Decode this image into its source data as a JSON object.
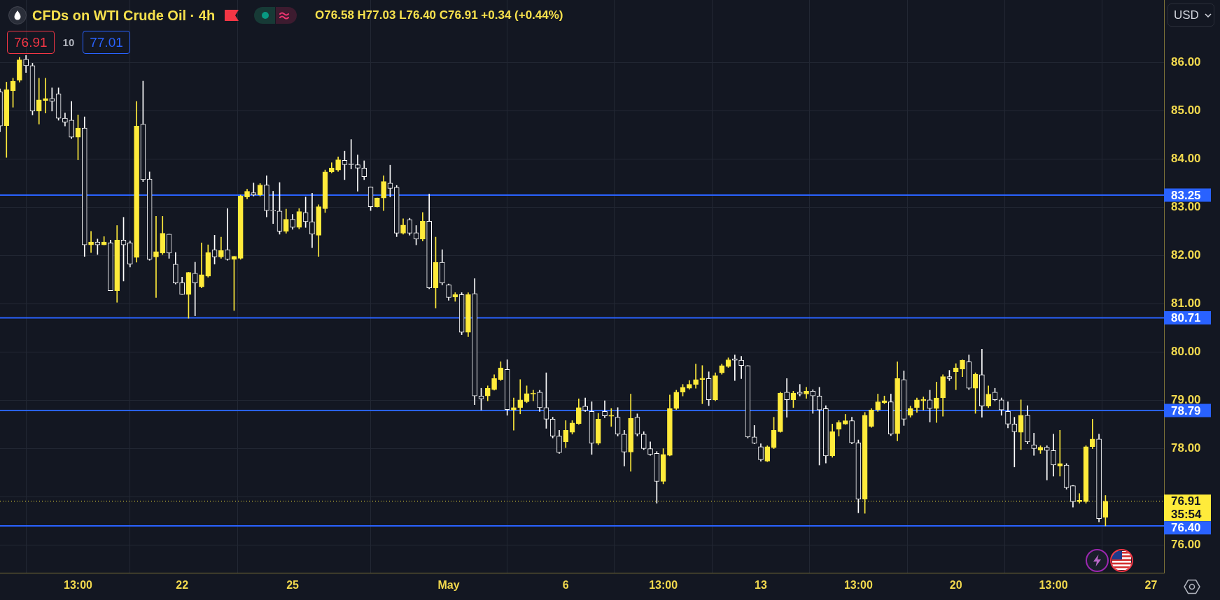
{
  "chart_data": {
    "type": "candlestick",
    "title": "CFDs on WTI Crude Oil · 4h",
    "annotations": [
      "O76.58 H77.03 L76.40 C76.91 +0.34 (+0.44%)",
      "76.91",
      "10",
      "77.01",
      "USD",
      "35:54"
    ],
    "categories": [
      null,
      null,
      null,
      null,
      null,
      null,
      null,
      null,
      null,
      null,
      null,
      null,
      "13:00",
      null,
      null,
      null,
      null,
      null,
      null,
      null,
      null,
      null,
      null,
      null,
      null,
      null,
      null,
      null,
      "22",
      null,
      null,
      null,
      null,
      null,
      null,
      null,
      null,
      null,
      null,
      null,
      null,
      null,
      null,
      null,
      null,
      "25",
      null,
      null,
      null,
      null,
      null,
      null,
      null,
      null,
      null,
      null,
      null,
      null,
      null,
      null,
      null,
      null,
      null,
      null,
      null,
      null,
      null,
      null,
      null,
      "May",
      null,
      null,
      null,
      null,
      null,
      null,
      null,
      null,
      null,
      null,
      null,
      null,
      null,
      null,
      null,
      null,
      null,
      "6",
      null,
      null,
      null,
      null,
      null,
      null,
      null,
      null,
      null,
      null,
      null,
      null,
      null,
      null,
      "13:00",
      null,
      null,
      null,
      null,
      null,
      null,
      null,
      null,
      null,
      null,
      null,
      null,
      null,
      null,
      "13",
      null,
      null,
      null,
      null,
      null,
      null,
      null,
      null,
      null,
      null,
      null,
      null,
      null,
      null,
      "13:00",
      null,
      null,
      null,
      null,
      null,
      null,
      null,
      null,
      null,
      null,
      null,
      null,
      null,
      null,
      "20",
      null,
      null,
      null,
      null,
      null,
      null,
      null,
      null,
      null,
      null,
      null,
      null,
      null,
      null,
      "13:00",
      null,
      null,
      null,
      null,
      null,
      null,
      null,
      null,
      null,
      null,
      null,
      null,
      null,
      null,
      "27",
      null,
      null
    ],
    "ohlc": [
      [
        85.39,
        85.45,
        84.56,
        84.68
      ],
      [
        84.69,
        85.59,
        84.03,
        85.43
      ],
      [
        85.41,
        85.67,
        85.07,
        85.61
      ],
      [
        85.63,
        86.1,
        85.59,
        86.05
      ],
      [
        86.06,
        86.14,
        85.79,
        85.93
      ],
      [
        85.93,
        85.98,
        84.91,
        84.99
      ],
      [
        84.99,
        85.67,
        84.72,
        85.22
      ],
      [
        85.21,
        85.67,
        84.95,
        85.25
      ],
      [
        85.25,
        85.47,
        84.99,
        85.19
      ],
      [
        85.35,
        85.47,
        84.8,
        84.84
      ],
      [
        84.84,
        84.95,
        84.68,
        84.76
      ],
      [
        84.8,
        85.19,
        84.42,
        84.45
      ],
      [
        84.45,
        84.91,
        83.98,
        84.64
      ],
      [
        84.64,
        84.87,
        81.98,
        82.22
      ],
      [
        82.22,
        82.5,
        82.06,
        82.28
      ],
      [
        82.28,
        82.34,
        82.02,
        82.22
      ],
      [
        82.22,
        82.39,
        82.22,
        82.28
      ],
      [
        82.26,
        82.32,
        81.27,
        81.27
      ],
      [
        81.27,
        82.62,
        81.03,
        82.32
      ],
      [
        82.32,
        82.79,
        81.47,
        82.22
      ],
      [
        82.26,
        82.3,
        81.76,
        81.82
      ],
      [
        81.96,
        85.19,
        81.86,
        84.68
      ],
      [
        84.72,
        85.61,
        83.53,
        83.57
      ],
      [
        83.58,
        83.73,
        81.9,
        81.92
      ],
      [
        81.97,
        82.81,
        81.13,
        82.08
      ],
      [
        82.05,
        82.81,
        82.02,
        82.46
      ],
      [
        82.44,
        82.44,
        81.94,
        82.05
      ],
      [
        81.82,
        82.06,
        81.41,
        81.43
      ],
      [
        81.44,
        81.55,
        81.19,
        81.19
      ],
      [
        81.19,
        81.65,
        80.7,
        81.65
      ],
      [
        81.63,
        81.86,
        80.75,
        81.43
      ],
      [
        81.35,
        82.26,
        81.33,
        81.6
      ],
      [
        81.57,
        82.22,
        81.55,
        82.06
      ],
      [
        82.12,
        82.42,
        81.82,
        81.97
      ],
      [
        81.97,
        82.38,
        81.94,
        82.1
      ],
      [
        82.12,
        82.97,
        81.9,
        81.92
      ],
      [
        81.92,
        81.98,
        80.86,
        81.98
      ],
      [
        81.94,
        83.25,
        81.92,
        83.23
      ],
      [
        83.21,
        83.37,
        83.17,
        83.33
      ],
      [
        83.3,
        83.5,
        83.23,
        83.25
      ],
      [
        83.25,
        83.49,
        83.23,
        83.46
      ],
      [
        83.46,
        83.65,
        82.8,
        82.93
      ],
      [
        82.93,
        83.33,
        82.66,
        82.92
      ],
      [
        82.92,
        83.51,
        82.44,
        82.5
      ],
      [
        82.5,
        82.96,
        82.46,
        82.75
      ],
      [
        82.75,
        82.85,
        82.54,
        82.58
      ],
      [
        82.58,
        82.97,
        82.55,
        82.91
      ],
      [
        82.89,
        83.21,
        82.58,
        82.7
      ],
      [
        82.7,
        83.29,
        82.16,
        82.44
      ],
      [
        82.42,
        83.05,
        81.98,
        83.01
      ],
      [
        82.97,
        83.77,
        82.89,
        83.73
      ],
      [
        83.73,
        83.92,
        83.71,
        83.81
      ],
      [
        83.77,
        84.04,
        83.74,
        83.98
      ],
      [
        83.97,
        84.16,
        83.57,
        83.88
      ],
      [
        83.9,
        84.4,
        83.79,
        83.88
      ],
      [
        83.88,
        84.08,
        83.33,
        83.81
      ],
      [
        83.81,
        83.96,
        83.57,
        83.63
      ],
      [
        83.42,
        83.42,
        82.93,
        83.01
      ],
      [
        83.01,
        83.19,
        83.0,
        83.19
      ],
      [
        83.19,
        83.65,
        82.93,
        83.53
      ],
      [
        83.5,
        83.87,
        83.21,
        83.39
      ],
      [
        83.41,
        83.45,
        82.39,
        82.46
      ],
      [
        82.46,
        82.76,
        82.44,
        82.63
      ],
      [
        82.74,
        82.77,
        82.42,
        82.46
      ],
      [
        82.47,
        82.62,
        82.22,
        82.34
      ],
      [
        82.34,
        82.89,
        82.3,
        82.71
      ],
      [
        82.71,
        83.27,
        81.31,
        81.33
      ],
      [
        81.33,
        82.38,
        80.91,
        81.86
      ],
      [
        81.86,
        82.12,
        81.39,
        81.43
      ],
      [
        81.39,
        81.41,
        81.07,
        81.13
      ],
      [
        81.14,
        81.23,
        81.05,
        81.19
      ],
      [
        81.19,
        81.23,
        80.36,
        80.41
      ],
      [
        80.41,
        81.23,
        80.32,
        81.19
      ],
      [
        81.21,
        81.52,
        78.91,
        79.09
      ],
      [
        79.09,
        79.25,
        78.8,
        79.03
      ],
      [
        79.09,
        79.3,
        78.99,
        79.25
      ],
      [
        79.22,
        79.53,
        79.21,
        79.45
      ],
      [
        79.43,
        79.8,
        79.41,
        79.67
      ],
      [
        79.64,
        79.84,
        78.69,
        78.81
      ],
      [
        78.8,
        79.05,
        78.38,
        78.85
      ],
      [
        78.85,
        79.43,
        78.72,
        79.01
      ],
      [
        78.97,
        79.3,
        78.95,
        79.14
      ],
      [
        79.13,
        79.21,
        78.99,
        79.15
      ],
      [
        79.17,
        79.21,
        78.77,
        78.85
      ],
      [
        78.85,
        79.57,
        78.42,
        78.61
      ],
      [
        78.61,
        78.65,
        78.22,
        78.26
      ],
      [
        78.26,
        78.38,
        77.9,
        77.92
      ],
      [
        78.14,
        78.58,
        78.02,
        78.38
      ],
      [
        78.34,
        78.58,
        78.3,
        78.53
      ],
      [
        78.52,
        79.03,
        78.5,
        78.85
      ],
      [
        78.88,
        79.05,
        78.77,
        78.79
      ],
      [
        78.77,
        78.97,
        77.88,
        78.11
      ],
      [
        78.11,
        78.73,
        78.08,
        78.61
      ],
      [
        78.77,
        78.99,
        78.64,
        78.68
      ],
      [
        78.67,
        78.83,
        78.46,
        78.69
      ],
      [
        78.65,
        78.85,
        78.26,
        78.3
      ],
      [
        78.3,
        78.38,
        77.64,
        77.93
      ],
      [
        77.93,
        79.13,
        77.53,
        78.63
      ],
      [
        78.65,
        78.72,
        78.26,
        78.3
      ],
      [
        78.3,
        78.35,
        77.98,
        78.0
      ],
      [
        78.0,
        78.14,
        77.86,
        77.88
      ],
      [
        77.9,
        77.94,
        76.87,
        77.32
      ],
      [
        77.32,
        78.0,
        77.27,
        77.88
      ],
      [
        77.86,
        79.11,
        77.85,
        78.83
      ],
      [
        78.83,
        79.21,
        78.81,
        79.17
      ],
      [
        79.17,
        79.33,
        79.09,
        79.27
      ],
      [
        79.25,
        79.41,
        79.23,
        79.33
      ],
      [
        79.33,
        79.75,
        79.25,
        79.43
      ],
      [
        79.43,
        79.72,
        78.93,
        79.46
      ],
      [
        79.45,
        79.59,
        78.89,
        79.01
      ],
      [
        79.01,
        79.57,
        78.99,
        79.51
      ],
      [
        79.57,
        79.75,
        79.54,
        79.72
      ],
      [
        79.7,
        79.88,
        79.68,
        79.84
      ],
      [
        79.86,
        79.94,
        79.41,
        79.83
      ],
      [
        79.83,
        79.91,
        79.45,
        79.72
      ],
      [
        79.72,
        79.72,
        78.22,
        78.24
      ],
      [
        78.24,
        78.48,
        78.1,
        78.11
      ],
      [
        78.04,
        78.1,
        77.74,
        77.77
      ],
      [
        77.74,
        78.06,
        77.73,
        78.04
      ],
      [
        78.02,
        78.65,
        78.0,
        78.38
      ],
      [
        78.35,
        79.17,
        78.34,
        79.15
      ],
      [
        79.17,
        79.45,
        78.65,
        79.01
      ],
      [
        79.01,
        79.19,
        78.85,
        79.15
      ],
      [
        79.17,
        79.33,
        79.09,
        79.13
      ],
      [
        79.13,
        79.27,
        79.04,
        79.19
      ],
      [
        79.19,
        79.22,
        78.73,
        79.09
      ],
      [
        79.09,
        79.27,
        77.66,
        78.8
      ],
      [
        78.83,
        78.89,
        77.7,
        77.85
      ],
      [
        77.85,
        78.51,
        77.82,
        78.35
      ],
      [
        78.4,
        78.58,
        78.26,
        78.54
      ],
      [
        78.51,
        78.71,
        78.5,
        78.58
      ],
      [
        78.58,
        78.65,
        78.1,
        78.12
      ],
      [
        78.12,
        78.18,
        76.67,
        76.95
      ],
      [
        76.95,
        78.75,
        76.66,
        78.69
      ],
      [
        78.46,
        78.83,
        78.44,
        78.8
      ],
      [
        78.8,
        79.13,
        78.77,
        78.97
      ],
      [
        78.95,
        79.09,
        78.93,
        78.99
      ],
      [
        78.97,
        79.13,
        78.27,
        78.3
      ],
      [
        78.31,
        79.8,
        78.16,
        79.45
      ],
      [
        79.43,
        79.61,
        78.48,
        78.61
      ],
      [
        78.69,
        78.88,
        78.65,
        78.83
      ],
      [
        78.85,
        79.05,
        78.75,
        79.01
      ],
      [
        78.99,
        79.07,
        78.8,
        79.02
      ],
      [
        79.01,
        79.21,
        78.55,
        78.83
      ],
      [
        78.83,
        79.38,
        78.54,
        79.05
      ],
      [
        79.05,
        79.53,
        78.67,
        79.49
      ],
      [
        79.49,
        79.62,
        79.41,
        79.45
      ],
      [
        79.59,
        79.76,
        79.22,
        79.67
      ],
      [
        79.65,
        79.84,
        79.49,
        79.83
      ],
      [
        79.8,
        79.94,
        79.22,
        79.25
      ],
      [
        79.25,
        79.57,
        78.73,
        79.54
      ],
      [
        79.53,
        80.06,
        78.65,
        78.88
      ],
      [
        78.88,
        79.3,
        78.85,
        79.13
      ],
      [
        79.17,
        79.25,
        78.99,
        79.01
      ],
      [
        79.01,
        79.05,
        78.69,
        78.8
      ],
      [
        78.77,
        78.97,
        78.43,
        78.51
      ],
      [
        78.51,
        78.65,
        77.62,
        78.35
      ],
      [
        78.34,
        79.01,
        77.98,
        78.69
      ],
      [
        78.69,
        78.89,
        78.1,
        78.14
      ],
      [
        78.08,
        78.32,
        77.86,
        78.0
      ],
      [
        77.97,
        78.06,
        77.9,
        78.03
      ],
      [
        78.03,
        78.06,
        77.35,
        77.96
      ],
      [
        77.96,
        78.3,
        77.43,
        77.66
      ],
      [
        77.64,
        78.38,
        77.43,
        77.69
      ],
      [
        77.66,
        77.69,
        77.16,
        77.19
      ],
      [
        77.23,
        77.24,
        76.79,
        76.9
      ],
      [
        76.9,
        77.07,
        76.87,
        76.93
      ],
      [
        76.9,
        78.06,
        76.87,
        78.04
      ],
      [
        78.04,
        78.61,
        78.0,
        78.2
      ],
      [
        78.2,
        78.3,
        76.48,
        76.55
      ],
      [
        76.58,
        77.03,
        76.4,
        76.91
      ],
      null,
      null,
      null,
      null,
      null,
      null,
      null,
      null,
      null
    ],
    "colors": [
      "#ffffff",
      "#ffeb3b",
      "#ffeb3b",
      "#ffeb3b",
      "#ffffff",
      "#ffffff",
      "#ffeb3b",
      "#ffeb3b",
      "#ffffff",
      "#ffffff",
      "#ffffff",
      "#ffffff",
      "#ffeb3b",
      "#ffffff",
      "#ffeb3b",
      "#ffffff",
      "#ffeb3b",
      "#ffffff",
      "#ffeb3b",
      "#ffffff",
      "#ffffff",
      "#ffeb3b",
      "#ffffff",
      "#ffffff",
      "#ffeb3b",
      "#ffeb3b",
      "#ffffff",
      "#ffffff",
      "#ffffff",
      "#ffeb3b",
      "#ffffff",
      "#ffeb3b",
      "#ffeb3b",
      "#ffffff",
      "#ffeb3b",
      "#ffffff",
      "#ffeb3b",
      "#ffeb3b",
      "#ffeb3b",
      "#ffffff",
      "#ffeb3b",
      "#ffffff",
      "#ffffff",
      "#ffffff",
      "#ffeb3b",
      "#ffffff",
      "#ffeb3b",
      "#ffffff",
      "#ffffff",
      "#ffeb3b",
      "#ffeb3b",
      "#ffeb3b",
      "#ffeb3b",
      "#ffffff",
      "#ffffff",
      "#ffffff",
      "#ffffff",
      "#ffffff",
      "#ffeb3b",
      "#ffeb3b",
      "#ffffff",
      "#ffffff",
      "#ffeb3b",
      "#ffffff",
      "#ffffff",
      "#ffeb3b",
      "#ffffff",
      "#ffeb3b",
      "#ffffff",
      "#ffffff",
      "#ffeb3b",
      "#ffffff",
      "#ffeb3b",
      "#ffffff",
      "#ffffff",
      "#ffeb3b",
      "#ffeb3b",
      "#ffeb3b",
      "#ffffff",
      "#ffeb3b",
      "#ffeb3b",
      "#ffeb3b",
      "#ffeb3b",
      "#ffffff",
      "#ffffff",
      "#ffffff",
      "#ffffff",
      "#ffeb3b",
      "#ffeb3b",
      "#ffeb3b",
      "#ffffff",
      "#ffffff",
      "#ffeb3b",
      "#ffffff",
      "#ffeb3b",
      "#ffffff",
      "#ffffff",
      "#ffeb3b",
      "#ffffff",
      "#ffffff",
      "#ffffff",
      "#ffffff",
      "#ffeb3b",
      "#ffeb3b",
      "#ffeb3b",
      "#ffeb3b",
      "#ffeb3b",
      "#ffeb3b",
      "#ffeb3b",
      "#ffffff",
      "#ffeb3b",
      "#ffeb3b",
      "#ffeb3b",
      "#ffffff",
      "#ffffff",
      "#ffffff",
      "#ffffff",
      "#ffffff",
      "#ffeb3b",
      "#ffeb3b",
      "#ffeb3b",
      "#ffffff",
      "#ffeb3b",
      "#ffffff",
      "#ffeb3b",
      "#ffffff",
      "#ffffff",
      "#ffffff",
      "#ffeb3b",
      "#ffeb3b",
      "#ffeb3b",
      "#ffffff",
      "#ffffff",
      "#ffeb3b",
      "#ffeb3b",
      "#ffeb3b",
      "#ffeb3b",
      "#ffffff",
      "#ffeb3b",
      "#ffffff",
      "#ffeb3b",
      "#ffeb3b",
      "#ffeb3b",
      "#ffffff",
      "#ffeb3b",
      "#ffeb3b",
      "#ffffff",
      "#ffeb3b",
      "#ffeb3b",
      "#ffffff",
      "#ffeb3b",
      "#ffffff",
      "#ffeb3b",
      "#ffffff",
      "#ffffff",
      "#ffffff",
      "#ffffff",
      "#ffeb3b",
      "#ffffff",
      "#ffffff",
      "#ffeb3b",
      "#ffffff",
      "#ffffff",
      "#ffeb3b",
      "#ffffff",
      "#ffffff",
      "#ffeb3b",
      "#ffeb3b",
      "#ffeb3b",
      "#ffffff",
      "#ffeb3b",
      null,
      null,
      null,
      null,
      null,
      null,
      null,
      null,
      null
    ],
    "ylim": [
      75.43,
      87.29
    ],
    "yticks": [
      {
        "value": 76,
        "label": "76.00"
      },
      {
        "value": 77,
        "label": null
      },
      {
        "value": 78,
        "label": "78.00"
      },
      {
        "value": 79,
        "label": "79.00"
      },
      {
        "value": 80,
        "label": "80.00"
      },
      {
        "value": 81,
        "label": "81.00"
      },
      {
        "value": 82,
        "label": "82.00"
      },
      {
        "value": 83,
        "label": "83.00"
      },
      {
        "value": 84,
        "label": "84.00"
      },
      {
        "value": 85,
        "label": "85.00"
      },
      {
        "value": 86,
        "label": "86.00"
      }
    ],
    "grid": true,
    "ref_lines": [
      {
        "axis": "y",
        "value": 83.25,
        "label": "83.25",
        "color": "#2962ff"
      },
      {
        "axis": "y",
        "value": 80.71,
        "label": "80.71",
        "color": "#2962ff"
      },
      {
        "axis": "y",
        "value": 78.79,
        "label": "78.79",
        "color": "#2962ff"
      },
      {
        "axis": "y",
        "value": 76.4,
        "label": "76.40",
        "color": "#2962ff"
      },
      {
        "axis": "y",
        "value": 76.91,
        "label": "76.91",
        "color": "#ffeb3b",
        "line_style": "dotted"
      }
    ]
  }
}
